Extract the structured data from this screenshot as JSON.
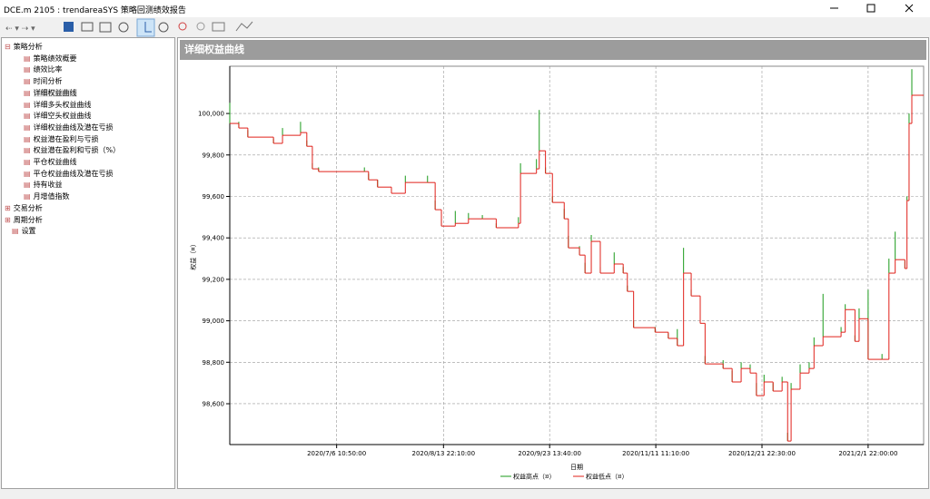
{
  "window": {
    "title": "DCE.m 2105 : trendareaSYS 策略回测绩效报告"
  },
  "tree": [
    {
      "label": "策略分析",
      "children": [
        "策略绩效概要",
        "绩效比率",
        "时间分析",
        "详细权益曲线",
        "详细多头权益曲线",
        "详细空头权益曲线",
        "详细权益曲线及潜在亏损",
        "权益潜在盈利与亏损",
        "权益潜在盈利和亏损（%）",
        "平仓权益曲线",
        "平仓权益曲线及潜在亏损",
        "持有收益",
        "月增值指数"
      ]
    },
    {
      "label": "交易分析"
    },
    {
      "label": "周期分析"
    },
    {
      "label": "设置"
    }
  ],
  "panel": {
    "title": "详细权益曲线"
  },
  "chart_data": {
    "type": "step",
    "x_label": "日期",
    "y_label": "权益（¤）",
    "x": [
      0,
      1.3,
      2.6,
      6.3,
      7.6,
      10.2,
      11.1,
      11.9,
      12.8,
      19.4,
      20.0,
      21.3,
      23.3,
      25.3,
      28.5,
      29.6,
      30.5,
      32.5,
      34.4,
      36.4,
      38.4,
      41.6,
      41.9,
      44.2,
      44.6,
      45.5,
      46.5,
      48.2,
      48.8,
      50.4,
      51.2,
      52.1,
      53.4,
      55.4,
      56.7,
      57.3,
      58.2,
      61.3,
      63.2,
      64.5,
      65.4,
      66.5,
      67.8,
      68.5,
      71.1,
      72.4,
      73.7,
      75.0,
      75.9,
      77.0,
      78.3,
      79.6,
      80.4,
      80.9,
      82.2,
      83.5,
      84.2,
      85.5,
      88.1,
      88.7,
      90.1,
      90.7,
      92.0,
      94.0,
      95.0,
      95.9,
      97.3,
      97.6,
      97.9,
      98.3
    ],
    "series": [
      {
        "name": "权益高点（¤）",
        "color": "#1a9a1a",
        "values": [
          100052,
          99960,
          99920,
          99880,
          99930,
          99960,
          99870,
          99760,
          99740,
          99740,
          99710,
          99680,
          99640,
          99700,
          99700,
          99580,
          99490,
          99530,
          99520,
          99510,
          99470,
          99500,
          99760,
          99780,
          100017,
          99740,
          99600,
          99540,
          99410,
          99360,
          99280,
          99414,
          99260,
          99330,
          99260,
          99170,
          99000,
          98970,
          98940,
          98960,
          99352,
          99150,
          99040,
          98830,
          98810,
          98760,
          98800,
          98790,
          98700,
          98740,
          98700,
          98730,
          98460,
          98700,
          98790,
          98800,
          98920,
          99130,
          98970,
          99080,
          98930,
          99060,
          99150,
          98840,
          99300,
          99430,
          99290,
          99600,
          100000,
          100214
        ]
      },
      {
        "name": "权益低点（¤）",
        "color": "#e0201a",
        "values": [
          99952,
          99930,
          99886,
          99856,
          99895,
          99908,
          99842,
          99733,
          99720,
          99720,
          99680,
          99645,
          99615,
          99667,
          99667,
          99536,
          99457,
          99470,
          99492,
          99492,
          99449,
          99470,
          99711,
          99733,
          99820,
          99711,
          99571,
          99492,
          99352,
          99317,
          99230,
          99383,
          99230,
          99274,
          99230,
          99142,
          98967,
          98945,
          98915,
          98880,
          99230,
          99120,
          98988,
          98792,
          98770,
          98705,
          98770,
          98748,
          98639,
          98705,
          98661,
          98705,
          98420,
          98670,
          98748,
          98770,
          98880,
          98923,
          98945,
          99054,
          98901,
          99010,
          98814,
          98814,
          99230,
          99295,
          99252,
          99580,
          99952,
          100088
        ]
      }
    ],
    "xlim": [
      0,
      100
    ],
    "ylim": [
      98403,
      100228
    ],
    "xticks": [
      {
        "value": 15.4,
        "label": "2020/7/6 10:50:00"
      },
      {
        "value": 30.8,
        "label": "2020/8/13 22:10:00"
      },
      {
        "value": 46.1,
        "label": "2020/9/23 13:40:00"
      },
      {
        "value": 61.4,
        "label": "2020/11/11 11:10:00"
      },
      {
        "value": 76.7,
        "label": "2020/12/21 22:30:00"
      },
      {
        "value": 92.0,
        "label": "2021/2/1 22:00:00"
      }
    ],
    "yticks": [
      {
        "value": 98600,
        "label": "98,600"
      },
      {
        "value": 98800,
        "label": "98,800"
      },
      {
        "value": 99000,
        "label": "99,000"
      },
      {
        "value": 99200,
        "label": "99,200"
      },
      {
        "value": 99400,
        "label": "99,400"
      },
      {
        "value": 99600,
        "label": "99,600"
      },
      {
        "value": 99800,
        "label": "99,800"
      },
      {
        "value": 100000,
        "label": "100,000"
      }
    ],
    "grid": true,
    "legend": "bottom"
  }
}
